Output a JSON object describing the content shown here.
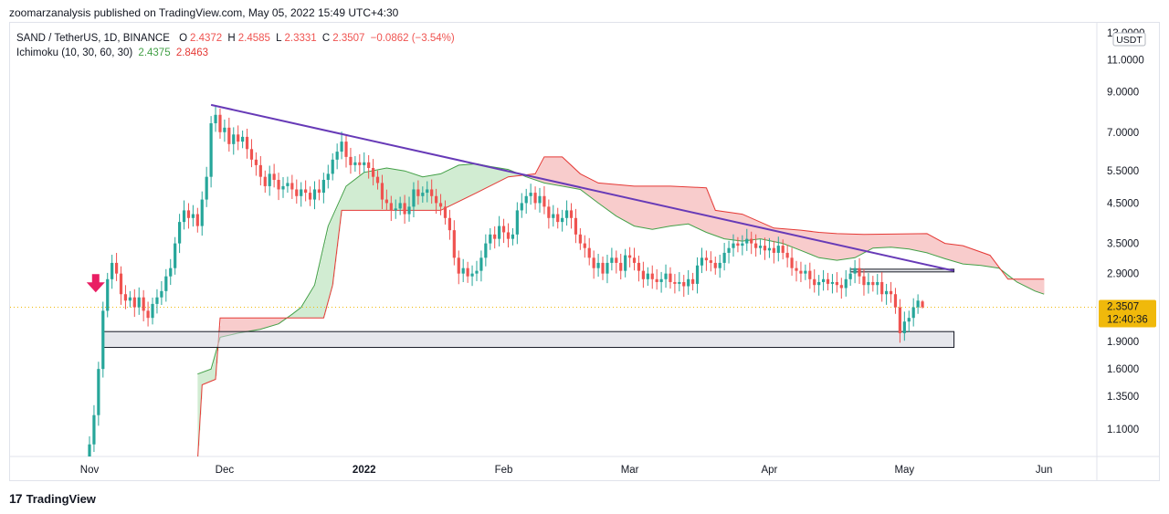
{
  "publisher": "zoomarzanalysis published on TradingView.com, May 05, 2022 15:49 UTC+4:30",
  "legend": {
    "symbol": "SAND / TetherUS, 1D, BINANCE",
    "o_label": "O",
    "o": "2.4372",
    "h_label": "H",
    "h": "2.4585",
    "l_label": "L",
    "l": "2.3331",
    "c_label": "C",
    "c": "2.3507",
    "change": "−0.0862 (−3.54%)",
    "indicator": "Ichimoku (10, 30, 60, 30)",
    "ind_val1": "2.4375",
    "ind_val2": "2.8463"
  },
  "price_axis": {
    "currency_badge": "USDT",
    "ticks": [
      "13.0000",
      "11.0000",
      "9.0000",
      "7.0000",
      "5.5000",
      "4.5000",
      "3.5000",
      "2.9000",
      "1.9000",
      "1.6000",
      "1.3500",
      "1.1000"
    ],
    "current_price": "2.3507",
    "countdown": "12:40:36"
  },
  "footer": {
    "brand": "TradingView"
  },
  "colors": {
    "up": "#26a69a",
    "down": "#ef5350",
    "trendline": "#673ab7",
    "cloud_bull": "#a5d6a7",
    "cloud_bear": "#ef9a9a",
    "price_badge": "#f0b90b"
  },
  "chart_data": {
    "type": "candlestick",
    "scale": "log",
    "ylim": [
      0.9,
      13.5
    ],
    "x_ticks": [
      {
        "label": "Nov",
        "date": "2021-11-01"
      },
      {
        "label": "Dec",
        "date": "2021-12-01"
      },
      {
        "label": "2022",
        "date": "2022-01-01"
      },
      {
        "label": "Feb",
        "date": "2022-02-01"
      },
      {
        "label": "Mar",
        "date": "2022-03-01"
      },
      {
        "label": "Apr",
        "date": "2022-04-01"
      },
      {
        "label": "May",
        "date": "2022-05-01"
      },
      {
        "label": "Jun",
        "date": "2022-06-01"
      }
    ],
    "candles": [
      {
        "date": "2021-10-31",
        "c": 0.83
      },
      {
        "date": "2021-11-01",
        "c": 1.0
      },
      {
        "date": "2021-11-02",
        "c": 1.2
      },
      {
        "date": "2021-11-03",
        "c": 1.6
      },
      {
        "date": "2021-11-04",
        "c": 2.3
      },
      {
        "date": "2021-11-05",
        "c": 2.8
      },
      {
        "date": "2021-11-06",
        "c": 3.1
      },
      {
        "date": "2021-11-07",
        "c": 2.9
      },
      {
        "date": "2021-11-08",
        "c": 2.55
      },
      {
        "date": "2021-11-09",
        "c": 2.45
      },
      {
        "date": "2021-11-10",
        "c": 2.5
      },
      {
        "date": "2021-11-11",
        "c": 2.35
      },
      {
        "date": "2021-11-12",
        "c": 2.5
      },
      {
        "date": "2021-11-13",
        "c": 2.3
      },
      {
        "date": "2021-11-14",
        "c": 2.2
      },
      {
        "date": "2021-11-15",
        "c": 2.4
      },
      {
        "date": "2021-11-16",
        "c": 2.5
      },
      {
        "date": "2021-11-17",
        "c": 2.6
      },
      {
        "date": "2021-11-18",
        "c": 2.85
      },
      {
        "date": "2021-11-19",
        "c": 3.0
      },
      {
        "date": "2021-11-20",
        "c": 3.5
      },
      {
        "date": "2021-11-21",
        "c": 4.0
      },
      {
        "date": "2021-11-22",
        "c": 4.3
      },
      {
        "date": "2021-11-23",
        "c": 4.1
      },
      {
        "date": "2021-11-24",
        "c": 4.2
      },
      {
        "date": "2021-11-25",
        "c": 3.9
      },
      {
        "date": "2021-11-26",
        "c": 4.6
      },
      {
        "date": "2021-11-27",
        "c": 5.3
      },
      {
        "date": "2021-11-28",
        "c": 7.4
      },
      {
        "date": "2021-11-29",
        "c": 7.8
      },
      {
        "date": "2021-11-30",
        "c": 7.0
      },
      {
        "date": "2021-12-01",
        "c": 7.2
      },
      {
        "date": "2021-12-02",
        "c": 6.5
      },
      {
        "date": "2021-12-03",
        "c": 6.9
      },
      {
        "date": "2021-12-04",
        "c": 6.6
      },
      {
        "date": "2021-12-05",
        "c": 6.8
      },
      {
        "date": "2021-12-06",
        "c": 6.3
      },
      {
        "date": "2021-12-07",
        "c": 5.9
      },
      {
        "date": "2021-12-08",
        "c": 5.7
      },
      {
        "date": "2021-12-09",
        "c": 5.3
      },
      {
        "date": "2021-12-10",
        "c": 5.0
      },
      {
        "date": "2021-12-11",
        "c": 5.4
      },
      {
        "date": "2021-12-12",
        "c": 5.2
      },
      {
        "date": "2021-12-13",
        "c": 4.9
      },
      {
        "date": "2021-12-14",
        "c": 5.0
      },
      {
        "date": "2021-12-15",
        "c": 5.1
      },
      {
        "date": "2021-12-16",
        "c": 4.9
      },
      {
        "date": "2021-12-17",
        "c": 4.7
      },
      {
        "date": "2021-12-18",
        "c": 4.9
      },
      {
        "date": "2021-12-19",
        "c": 4.8
      },
      {
        "date": "2021-12-20",
        "c": 4.6
      },
      {
        "date": "2021-12-21",
        "c": 4.9
      },
      {
        "date": "2021-12-22",
        "c": 4.8
      },
      {
        "date": "2021-12-23",
        "c": 5.2
      },
      {
        "date": "2021-12-24",
        "c": 5.4
      },
      {
        "date": "2021-12-25",
        "c": 5.9
      },
      {
        "date": "2021-12-26",
        "c": 6.2
      },
      {
        "date": "2021-12-27",
        "c": 6.6
      },
      {
        "date": "2021-12-28",
        "c": 6.0
      },
      {
        "date": "2021-12-29",
        "c": 5.7
      },
      {
        "date": "2021-12-30",
        "c": 5.8
      },
      {
        "date": "2021-12-31",
        "c": 5.7
      },
      {
        "date": "2022-01-01",
        "c": 5.8
      },
      {
        "date": "2022-01-02",
        "c": 5.6
      },
      {
        "date": "2022-01-03",
        "c": 5.3
      },
      {
        "date": "2022-01-04",
        "c": 5.1
      },
      {
        "date": "2022-01-05",
        "c": 4.6
      },
      {
        "date": "2022-01-06",
        "c": 4.5
      },
      {
        "date": "2022-01-07",
        "c": 4.3
      },
      {
        "date": "2022-01-08",
        "c": 4.35
      },
      {
        "date": "2022-01-09",
        "c": 4.5
      },
      {
        "date": "2022-01-10",
        "c": 4.2
      },
      {
        "date": "2022-01-11",
        "c": 4.4
      },
      {
        "date": "2022-01-12",
        "c": 4.9
      },
      {
        "date": "2022-01-13",
        "c": 4.7
      },
      {
        "date": "2022-01-14",
        "c": 4.8
      },
      {
        "date": "2022-01-15",
        "c": 4.9
      },
      {
        "date": "2022-01-16",
        "c": 4.7
      },
      {
        "date": "2022-01-17",
        "c": 4.5
      },
      {
        "date": "2022-01-18",
        "c": 4.4
      },
      {
        "date": "2022-01-19",
        "c": 4.1
      },
      {
        "date": "2022-01-20",
        "c": 3.8
      },
      {
        "date": "2022-01-21",
        "c": 3.2
      },
      {
        "date": "2022-01-22",
        "c": 2.9
      },
      {
        "date": "2022-01-23",
        "c": 3.0
      },
      {
        "date": "2022-01-24",
        "c": 2.85
      },
      {
        "date": "2022-01-25",
        "c": 2.9
      },
      {
        "date": "2022-01-26",
        "c": 2.95
      },
      {
        "date": "2022-01-27",
        "c": 3.2
      },
      {
        "date": "2022-01-28",
        "c": 3.5
      },
      {
        "date": "2022-01-29",
        "c": 3.7
      },
      {
        "date": "2022-01-30",
        "c": 3.6
      },
      {
        "date": "2022-01-31",
        "c": 3.9
      },
      {
        "date": "2022-02-01",
        "c": 3.75
      },
      {
        "date": "2022-02-02",
        "c": 3.6
      },
      {
        "date": "2022-02-03",
        "c": 3.7
      },
      {
        "date": "2022-02-04",
        "c": 4.3
      },
      {
        "date": "2022-02-05",
        "c": 4.5
      },
      {
        "date": "2022-02-06",
        "c": 4.7
      },
      {
        "date": "2022-02-07",
        "c": 4.8
      },
      {
        "date": "2022-02-08",
        "c": 4.5
      },
      {
        "date": "2022-02-09",
        "c": 4.7
      },
      {
        "date": "2022-02-10",
        "c": 4.4
      },
      {
        "date": "2022-02-11",
        "c": 4.1
      },
      {
        "date": "2022-02-12",
        "c": 4.2
      },
      {
        "date": "2022-02-13",
        "c": 4.0
      },
      {
        "date": "2022-02-14",
        "c": 4.1
      },
      {
        "date": "2022-02-15",
        "c": 4.3
      },
      {
        "date": "2022-02-16",
        "c": 4.1
      },
      {
        "date": "2022-02-17",
        "c": 3.7
      },
      {
        "date": "2022-02-18",
        "c": 3.5
      },
      {
        "date": "2022-02-19",
        "c": 3.4
      },
      {
        "date": "2022-02-20",
        "c": 3.2
      },
      {
        "date": "2022-02-21",
        "c": 3.0
      },
      {
        "date": "2022-02-22",
        "c": 3.1
      },
      {
        "date": "2022-02-23",
        "c": 2.9
      },
      {
        "date": "2022-02-24",
        "c": 3.1
      },
      {
        "date": "2022-02-25",
        "c": 3.2
      },
      {
        "date": "2022-02-26",
        "c": 3.1
      },
      {
        "date": "2022-02-27",
        "c": 2.95
      },
      {
        "date": "2022-02-28",
        "c": 3.25
      },
      {
        "date": "2022-03-01",
        "c": 3.2
      },
      {
        "date": "2022-03-02",
        "c": 3.1
      },
      {
        "date": "2022-03-03",
        "c": 2.95
      },
      {
        "date": "2022-03-04",
        "c": 2.8
      },
      {
        "date": "2022-03-05",
        "c": 2.9
      },
      {
        "date": "2022-03-06",
        "c": 2.8
      },
      {
        "date": "2022-03-07",
        "c": 2.75
      },
      {
        "date": "2022-03-08",
        "c": 2.8
      },
      {
        "date": "2022-03-09",
        "c": 2.9
      },
      {
        "date": "2022-03-10",
        "c": 2.75
      },
      {
        "date": "2022-03-11",
        "c": 2.72
      },
      {
        "date": "2022-03-12",
        "c": 2.75
      },
      {
        "date": "2022-03-13",
        "c": 2.68
      },
      {
        "date": "2022-03-14",
        "c": 2.8
      },
      {
        "date": "2022-03-15",
        "c": 2.72
      },
      {
        "date": "2022-03-16",
        "c": 3.05
      },
      {
        "date": "2022-03-17",
        "c": 3.2
      },
      {
        "date": "2022-03-18",
        "c": 3.15
      },
      {
        "date": "2022-03-19",
        "c": 3.1
      },
      {
        "date": "2022-03-20",
        "c": 3.0
      },
      {
        "date": "2022-03-21",
        "c": 3.1
      },
      {
        "date": "2022-03-22",
        "c": 3.3
      },
      {
        "date": "2022-03-23",
        "c": 3.4
      },
      {
        "date": "2022-03-24",
        "c": 3.5
      },
      {
        "date": "2022-03-25",
        "c": 3.45
      },
      {
        "date": "2022-03-26",
        "c": 3.5
      },
      {
        "date": "2022-03-27",
        "c": 3.6
      },
      {
        "date": "2022-03-28",
        "c": 3.5
      },
      {
        "date": "2022-03-29",
        "c": 3.4
      },
      {
        "date": "2022-03-30",
        "c": 3.45
      },
      {
        "date": "2022-03-31",
        "c": 3.35
      },
      {
        "date": "2022-04-01",
        "c": 3.4
      },
      {
        "date": "2022-04-02",
        "c": 3.3
      },
      {
        "date": "2022-04-03",
        "c": 3.45
      },
      {
        "date": "2022-04-04",
        "c": 3.3
      },
      {
        "date": "2022-04-05",
        "c": 3.2
      },
      {
        "date": "2022-04-06",
        "c": 3.0
      },
      {
        "date": "2022-04-07",
        "c": 2.95
      },
      {
        "date": "2022-04-08",
        "c": 2.9
      },
      {
        "date": "2022-04-09",
        "c": 2.95
      },
      {
        "date": "2022-04-10",
        "c": 2.8
      },
      {
        "date": "2022-04-11",
        "c": 2.7
      },
      {
        "date": "2022-04-12",
        "c": 2.75
      },
      {
        "date": "2022-04-13",
        "c": 2.8
      },
      {
        "date": "2022-04-14",
        "c": 2.72
      },
      {
        "date": "2022-04-15",
        "c": 2.75
      },
      {
        "date": "2022-04-16",
        "c": 2.7
      },
      {
        "date": "2022-04-17",
        "c": 2.65
      },
      {
        "date": "2022-04-18",
        "c": 2.8
      },
      {
        "date": "2022-04-19",
        "c": 2.9
      },
      {
        "date": "2022-04-20",
        "c": 3.0
      },
      {
        "date": "2022-04-21",
        "c": 2.85
      },
      {
        "date": "2022-04-22",
        "c": 2.7
      },
      {
        "date": "2022-04-23",
        "c": 2.75
      },
      {
        "date": "2022-04-24",
        "c": 2.7
      },
      {
        "date": "2022-04-25",
        "c": 2.75
      },
      {
        "date": "2022-04-26",
        "c": 2.55
      },
      {
        "date": "2022-04-27",
        "c": 2.6
      },
      {
        "date": "2022-04-28",
        "c": 2.55
      },
      {
        "date": "2022-04-29",
        "c": 2.35
      },
      {
        "date": "2022-04-30",
        "c": 2.0
      },
      {
        "date": "2022-05-01",
        "c": 2.15
      },
      {
        "date": "2022-05-02",
        "c": 2.2
      },
      {
        "date": "2022-05-03",
        "c": 2.35
      },
      {
        "date": "2022-05-04",
        "c": 2.45
      },
      {
        "date": "2022-05-05",
        "o": 2.4372,
        "h": 2.4585,
        "l": 2.3331,
        "c": 2.3507
      }
    ],
    "cloud_span_a": [
      [
        "2021-11-25",
        1.55
      ],
      [
        "2021-11-28",
        1.6
      ],
      [
        "2021-11-30",
        1.95
      ],
      [
        "2021-12-04",
        2.0
      ],
      [
        "2021-12-09",
        2.05
      ],
      [
        "2021-12-13",
        2.12
      ],
      [
        "2021-12-16",
        2.25
      ],
      [
        "2021-12-18",
        2.35
      ],
      [
        "2021-12-21",
        2.7
      ],
      [
        "2021-12-24",
        3.9
      ],
      [
        "2021-12-28",
        5.0
      ],
      [
        "2022-01-01",
        5.45
      ],
      [
        "2022-01-06",
        5.6
      ],
      [
        "2022-01-10",
        5.5
      ],
      [
        "2022-01-14",
        5.3
      ],
      [
        "2022-01-18",
        5.4
      ],
      [
        "2022-01-22",
        5.7
      ],
      [
        "2022-01-26",
        5.75
      ],
      [
        "2022-01-29",
        5.65
      ],
      [
        "2022-02-02",
        5.55
      ],
      [
        "2022-02-06",
        5.3
      ],
      [
        "2022-02-10",
        5.1
      ],
      [
        "2022-02-14",
        5.0
      ],
      [
        "2022-02-18",
        4.9
      ],
      [
        "2022-02-22",
        4.5
      ],
      [
        "2022-02-26",
        4.15
      ],
      [
        "2022-03-02",
        3.9
      ],
      [
        "2022-03-06",
        3.82
      ],
      [
        "2022-03-10",
        3.9
      ],
      [
        "2022-03-14",
        3.95
      ],
      [
        "2022-03-18",
        3.75
      ],
      [
        "2022-03-22",
        3.6
      ],
      [
        "2022-03-26",
        3.55
      ],
      [
        "2022-03-30",
        3.6
      ],
      [
        "2022-04-04",
        3.5
      ],
      [
        "2022-04-08",
        3.35
      ],
      [
        "2022-04-12",
        3.2
      ],
      [
        "2022-04-16",
        3.15
      ],
      [
        "2022-04-20",
        3.2
      ],
      [
        "2022-04-24",
        3.4
      ],
      [
        "2022-04-28",
        3.42
      ],
      [
        "2022-05-02",
        3.38
      ],
      [
        "2022-05-06",
        3.3
      ],
      [
        "2022-05-10",
        3.18
      ],
      [
        "2022-05-14",
        3.08
      ],
      [
        "2022-05-18",
        3.05
      ],
      [
        "2022-05-22",
        3.0
      ],
      [
        "2022-05-26",
        2.75
      ],
      [
        "2022-05-30",
        2.6
      ],
      [
        "2022-06-01",
        2.55
      ]
    ],
    "cloud_span_b": [
      [
        "2021-11-25",
        0.9
      ],
      [
        "2021-11-26",
        1.45
      ],
      [
        "2021-11-29",
        1.5
      ],
      [
        "2021-11-30",
        2.2
      ],
      [
        "2021-12-06",
        2.2
      ],
      [
        "2021-12-23",
        2.2
      ],
      [
        "2021-12-25",
        2.7
      ],
      [
        "2021-12-27",
        4.3
      ],
      [
        "2022-01-06",
        4.3
      ],
      [
        "2022-01-18",
        4.3
      ],
      [
        "2022-01-26",
        4.8
      ],
      [
        "2022-02-02",
        5.3
      ],
      [
        "2022-02-08",
        5.4
      ],
      [
        "2022-02-10",
        6.0
      ],
      [
        "2022-02-14",
        6.0
      ],
      [
        "2022-02-18",
        5.4
      ],
      [
        "2022-02-22",
        5.1
      ],
      [
        "2022-03-02",
        5.0
      ],
      [
        "2022-03-10",
        5.0
      ],
      [
        "2022-03-18",
        4.95
      ],
      [
        "2022-03-20",
        4.3
      ],
      [
        "2022-03-26",
        4.2
      ],
      [
        "2022-04-02",
        3.85
      ],
      [
        "2022-04-08",
        3.8
      ],
      [
        "2022-04-12",
        3.75
      ],
      [
        "2022-04-16",
        3.72
      ],
      [
        "2022-04-22",
        3.7
      ],
      [
        "2022-05-06",
        3.72
      ],
      [
        "2022-05-10",
        3.5
      ],
      [
        "2022-05-14",
        3.45
      ],
      [
        "2022-05-20",
        3.25
      ],
      [
        "2022-05-24",
        2.8
      ],
      [
        "2022-06-01",
        2.8
      ]
    ],
    "trendline": [
      [
        "2021-11-28",
        8.3
      ],
      [
        "2022-05-12",
        2.95
      ]
    ],
    "zones": [
      {
        "from": "2021-11-04",
        "to": "2022-05-12",
        "low": 1.83,
        "high": 2.02
      },
      {
        "from": "2022-04-19",
        "to": "2022-05-12",
        "low": 2.93,
        "high": 2.98
      }
    ],
    "arrow_marker": {
      "date": "2021-11-04",
      "price": 2.55
    },
    "current_price_line": 2.3507
  }
}
